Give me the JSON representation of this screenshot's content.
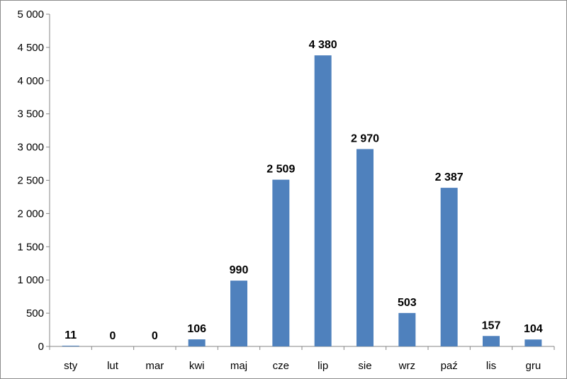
{
  "chart_data": {
    "type": "bar",
    "categories": [
      "sty",
      "lut",
      "mar",
      "kwi",
      "maj",
      "cze",
      "lip",
      "sie",
      "wrz",
      "paź",
      "lis",
      "gru"
    ],
    "values": [
      11,
      0,
      0,
      106,
      990,
      2509,
      4380,
      2970,
      503,
      2387,
      157,
      104
    ],
    "value_labels": [
      "11",
      "0",
      "0",
      "106",
      "990",
      "2 509",
      "4 380",
      "2 970",
      "503",
      "2 387",
      "157",
      "104"
    ],
    "ylim": [
      0,
      5000
    ],
    "yticks": [
      0,
      500,
      1000,
      1500,
      2000,
      2500,
      3000,
      3500,
      4000,
      4500,
      5000
    ],
    "ytick_labels": [
      "0",
      "500",
      "1 000",
      "1 500",
      "2 000",
      "2 500",
      "3 000",
      "3 500",
      "4 000",
      "4 500",
      "5 000"
    ],
    "grid": false,
    "legend": "none",
    "bar_color": "#4f81bd",
    "axis_color": "#868686"
  }
}
